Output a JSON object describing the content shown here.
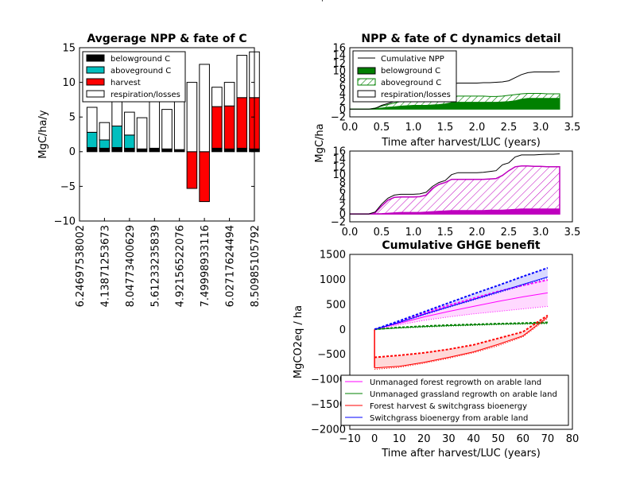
{
  "stray_mark": "'",
  "panel_avg": {
    "title": "Avgerage NPP & fate of C",
    "ylabel": "MgC/ha/y",
    "ylim": [
      -10,
      15
    ],
    "yticks": [
      "15",
      "10",
      "5",
      "0",
      "−5",
      "−10"
    ],
    "xticks": [
      "6.24697538002",
      "4.13871253673",
      "8.04773400629",
      "5.61233235839",
      "4.92156522076",
      "7.49998933116",
      "6.02717624494",
      "8.50985105792"
    ],
    "legend": [
      "belowground C",
      "aboveground C",
      "harvest",
      "respiration/losses"
    ]
  },
  "panel_dyn": {
    "title": "NPP & fate of C dynamics detail",
    "yticks": [
      "16",
      "14",
      "12",
      "10",
      "8",
      "6",
      "4",
      "2",
      "0",
      "−2"
    ],
    "xticks": [
      "0.0",
      "0.5",
      "1.0",
      "1.5",
      "2.0",
      "2.5",
      "3.0",
      "3.5"
    ],
    "xlabel": "Time after harvest/LUC (years)",
    "legend": [
      "Cumulative NPP",
      "belowground C",
      "aboveground C",
      "respiration/losses"
    ]
  },
  "panel_dyn2": {
    "ylabel": "MgC/ha",
    "yticks": [
      "16",
      "14",
      "12",
      "10",
      "8",
      "6",
      "4",
      "2",
      "0",
      "−2"
    ],
    "xticks": [
      "0.0",
      "0.5",
      "1.0",
      "1.5",
      "2.0",
      "2.5",
      "3.0",
      "3.5"
    ]
  },
  "panel_ghg": {
    "title": "Cumulative GHGE benefit",
    "ylabel": "MgCO2eq / ha",
    "xlabel": "Time after harvest/LUC (years)",
    "yticks": [
      "1500",
      "1000",
      "500",
      "0",
      "−500",
      "−1000",
      "−1500",
      "−2000"
    ],
    "xticks": [
      "−10",
      "0",
      "10",
      "20",
      "30",
      "40",
      "50",
      "60",
      "70",
      "80"
    ],
    "legend": [
      "Unmanaged forest regrowth on arable land",
      "Unmanaged grassland regrowth on arable land",
      "Forest harvest & switchgrass bioenergy",
      "Switchgrass bioenergy from arable land"
    ]
  },
  "colors": {
    "belowground": "#000000",
    "aboveground": "#00bfbf",
    "harvest": "#ff0000",
    "respiration": "#ffffff",
    "green": "#008000",
    "magenta": "#bf00bf",
    "forest_regrowth": "#ff00ff",
    "grass_regrowth": "#008000",
    "forest_harvest": "#ff0000",
    "switchgrass": "#0000ff"
  },
  "chart_data": [
    {
      "type": "bar",
      "title": "Avgerage NPP & fate of C",
      "ylabel": "MgC/ha/y",
      "ylim": [
        -10,
        15
      ],
      "x": [
        1,
        2,
        3,
        4,
        5,
        6,
        7,
        8,
        9,
        10,
        11,
        12,
        13,
        14
      ],
      "x_tick_positions": [
        1,
        3,
        5,
        7,
        9,
        11,
        13,
        15
      ],
      "series": [
        {
          "name": "belowground C",
          "values": [
            0.6,
            0.5,
            0.6,
            0.5,
            0.4,
            0.5,
            0.4,
            0.3,
            0.0,
            0.0,
            0.5,
            0.4,
            0.5,
            0.4
          ]
        },
        {
          "name": "aboveground C",
          "values": [
            2.2,
            1.2,
            3.1,
            1.9,
            0.0,
            0.0,
            0.0,
            0.0,
            0.0,
            0.0,
            0.0,
            0.0,
            0.0,
            0.0
          ]
        },
        {
          "name": "harvest",
          "values": [
            0.0,
            0.0,
            0.0,
            0.0,
            0.0,
            0.0,
            0.0,
            0.0,
            -5.3,
            -7.2,
            6.0,
            6.2,
            7.3,
            7.4
          ]
        },
        {
          "name": "respiration/losses",
          "values": [
            3.6,
            2.5,
            5.0,
            3.3,
            4.5,
            8.0,
            5.7,
            9.7,
            10.0,
            12.6,
            2.8,
            3.4,
            6.1,
            6.6
          ]
        }
      ]
    },
    {
      "type": "area",
      "title": "NPP & fate of C dynamics detail",
      "xlabel": "Time after harvest/LUC (years)",
      "xlim": [
        0.0,
        3.5
      ],
      "ylim": [
        -2,
        16
      ],
      "x": [
        0,
        0.1,
        0.2,
        0.3,
        0.4,
        0.5,
        0.6,
        0.7,
        0.8,
        0.9,
        1.0,
        1.1,
        1.2,
        1.3,
        1.4,
        1.5,
        1.6,
        1.7,
        1.8,
        1.9,
        2.0,
        2.1,
        2.2,
        2.3,
        2.4,
        2.5,
        2.6,
        2.7,
        2.8,
        2.9,
        3.0,
        3.1,
        3.2,
        3.3
      ],
      "series": [
        {
          "name": "Cumulative NPP",
          "values": [
            0,
            0,
            0,
            0,
            0.2,
            1.0,
            1.5,
            2.0,
            2.6,
            3.0,
            3.2,
            3.3,
            3.4,
            3.6,
            4.5,
            5.5,
            6.5,
            6.8,
            6.8,
            6.8,
            6.8,
            6.9,
            6.9,
            7.0,
            7.1,
            7.4,
            8.2,
            9.0,
            9.5,
            9.7,
            9.7,
            9.7,
            9.7,
            9.8
          ]
        },
        {
          "name": "belowground C",
          "values": [
            0,
            0,
            0,
            0,
            0.1,
            0.3,
            0.5,
            0.6,
            0.8,
            0.9,
            1.0,
            1.0,
            1.0,
            1.1,
            1.2,
            1.4,
            1.7,
            1.8,
            1.8,
            1.8,
            1.8,
            1.8,
            1.8,
            1.8,
            1.9,
            2.0,
            2.2,
            2.6,
            2.8,
            2.8,
            2.8,
            2.8,
            2.8,
            2.8
          ]
        },
        {
          "name": "aboveground C",
          "values": [
            0,
            0,
            0,
            0,
            0.3,
            0.8,
            1.2,
            1.6,
            2.0,
            2.2,
            2.3,
            2.4,
            2.4,
            2.5,
            2.7,
            3.0,
            3.3,
            3.4,
            3.4,
            3.4,
            3.4,
            3.4,
            3.3,
            3.3,
            3.4,
            3.6,
            3.8,
            4.0,
            4.1,
            4.1,
            4.1,
            4.0,
            4.0,
            4.0
          ]
        }
      ]
    },
    {
      "type": "area",
      "xlim": [
        0.0,
        3.5
      ],
      "ylim": [
        -2,
        16
      ],
      "ylabel": "MgC/ha",
      "x": [
        0,
        0.1,
        0.2,
        0.3,
        0.4,
        0.5,
        0.6,
        0.7,
        0.8,
        0.9,
        1.0,
        1.1,
        1.2,
        1.3,
        1.4,
        1.5,
        1.6,
        1.7,
        1.8,
        1.9,
        2.0,
        2.1,
        2.2,
        2.3,
        2.4,
        2.5,
        2.6,
        2.7,
        2.8,
        2.9,
        3.0,
        3.1,
        3.2,
        3.3
      ],
      "series": [
        {
          "values": [
            0,
            0,
            0,
            0,
            0.5,
            2.5,
            4.0,
            4.8,
            5.0,
            5.0,
            5.0,
            5.1,
            5.5,
            7.0,
            8.0,
            8.5,
            10.0,
            10.5,
            10.5,
            10.5,
            10.5,
            10.6,
            10.8,
            11.0,
            12.5,
            13.0,
            14.5,
            15.0,
            15.0,
            15.0,
            15.1,
            15.2,
            15.2,
            15.3
          ]
        },
        {
          "values": [
            0,
            0,
            0,
            0,
            0.3,
            2.0,
            3.5,
            4.2,
            4.3,
            4.3,
            4.3,
            4.4,
            4.8,
            6.5,
            7.5,
            8.0,
            8.8,
            8.8,
            8.8,
            8.8,
            8.8,
            8.8,
            8.9,
            9.0,
            9.8,
            11.0,
            12.0,
            12.2,
            12.2,
            12.1,
            12.1,
            12.0,
            12.0,
            12.0
          ]
        },
        {
          "values": [
            0,
            0,
            0,
            0,
            0.05,
            0.1,
            0.2,
            0.3,
            0.4,
            0.4,
            0.4,
            0.4,
            0.5,
            0.6,
            0.7,
            0.8,
            0.9,
            0.9,
            0.9,
            0.9,
            0.9,
            0.9,
            1.0,
            1.0,
            1.0,
            1.1,
            1.2,
            1.3,
            1.3,
            1.3,
            1.3,
            1.3,
            1.3,
            1.3
          ]
        }
      ]
    },
    {
      "type": "line",
      "title": "Cumulative GHGE benefit",
      "xlabel": "Time after harvest/LUC (years)",
      "ylabel": "MgCO2eq / ha",
      "xlim": [
        -10,
        80
      ],
      "ylim": [
        -2000,
        1500
      ],
      "x": [
        0,
        10,
        20,
        30,
        40,
        50,
        60,
        70
      ],
      "series": [
        {
          "name": "Unmanaged forest regrowth on arable land",
          "values": [
            0,
            120,
            250,
            360,
            460,
            560,
            650,
            730
          ],
          "low": [
            0,
            90,
            180,
            250,
            310,
            360,
            410,
            460
          ],
          "high": [
            0,
            150,
            320,
            480,
            620,
            760,
            880,
            990
          ]
        },
        {
          "name": "Unmanaged grassland regrowth on arable land",
          "values": [
            0,
            30,
            55,
            75,
            90,
            105,
            115,
            130
          ],
          "low": [
            0,
            25,
            45,
            65,
            80,
            95,
            105,
            115
          ],
          "high": [
            0,
            40,
            65,
            85,
            100,
            115,
            125,
            140
          ]
        },
        {
          "name": "Forest harvest & switchgrass bioenergy",
          "values": [
            -770,
            -740,
            -660,
            -560,
            -450,
            -300,
            -130,
            250
          ],
          "low": [
            -800,
            -760,
            -680,
            -580,
            -470,
            -330,
            -150,
            220
          ],
          "high": [
            -560,
            -520,
            -470,
            -400,
            -310,
            -180,
            -50,
            280
          ]
        },
        {
          "name": "Switchgrass bioenergy from arable land",
          "values": [
            0,
            140,
            300,
            450,
            600,
            750,
            900,
            1050
          ],
          "low": [
            0,
            135,
            290,
            440,
            585,
            730,
            880,
            1030
          ],
          "high": [
            0,
            170,
            350,
            530,
            710,
            880,
            1060,
            1230
          ]
        }
      ]
    }
  ]
}
